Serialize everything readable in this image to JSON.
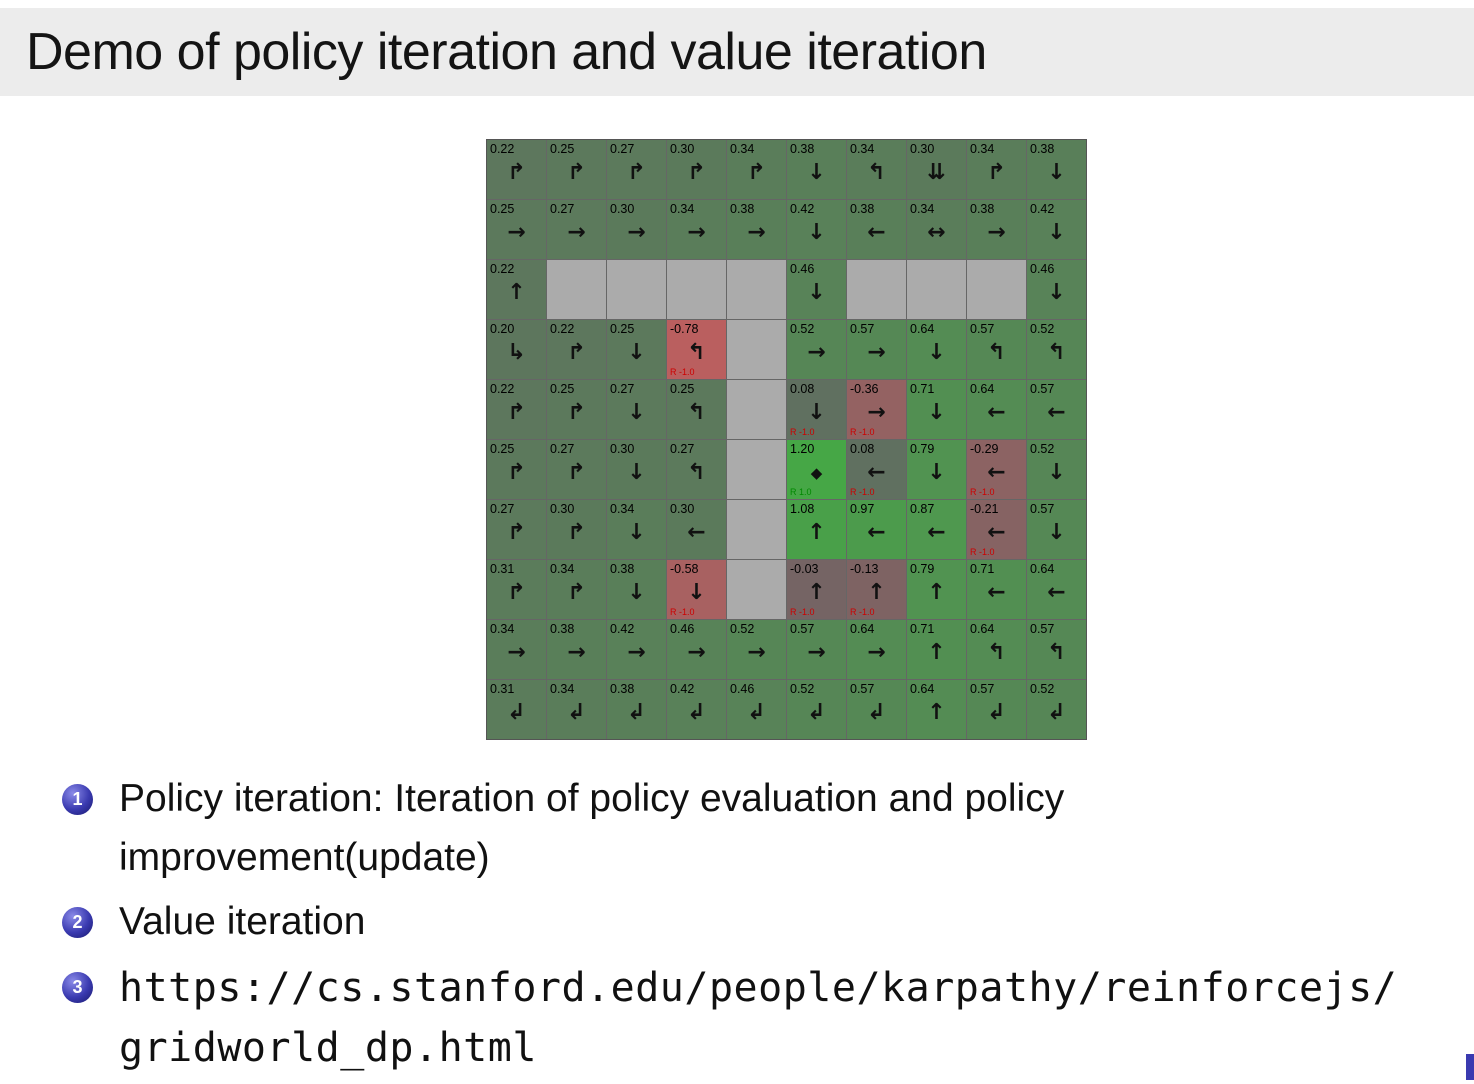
{
  "slide": {
    "title": "Demo of policy iteration and value iteration",
    "bullets": [
      {
        "num": "1",
        "text": "Policy iteration: Iteration of policy evaluation and policy improvement(update)"
      },
      {
        "num": "2",
        "text": "Value iteration"
      },
      {
        "num": "3",
        "lines": [
          "https://cs.stanford.edu/people/karpathy/reinforcejs/",
          "gridworld_dp.html"
        ]
      }
    ],
    "accent_blue": "#3a3ab0",
    "header_bg": "#ececec"
  },
  "grid": {
    "rows": 10,
    "cols": 10,
    "positive_color": "#3cbe3c",
    "negative_color": "#ff5a5a",
    "wall_color": "#ababab",
    "reward_negative_color": "#cc0000",
    "reward_positive_color": "#008800",
    "arrow_glyphs": {
      "U": "↑",
      "D": "↓",
      "L": "←",
      "R": "→",
      "LR": "↔",
      "DD": "⇊",
      "UR": "↱",
      "UL": "↰",
      "DL": "↲",
      "DR": "↳",
      "STAR": "◆"
    },
    "cells": [
      [
        {
          "v": "0.22",
          "a": "UR"
        },
        {
          "v": "0.25",
          "a": "UR"
        },
        {
          "v": "0.27",
          "a": "UR"
        },
        {
          "v": "0.30",
          "a": "UR"
        },
        {
          "v": "0.34",
          "a": "UR"
        },
        {
          "v": "0.38",
          "a": "D"
        },
        {
          "v": "0.34",
          "a": "UL"
        },
        {
          "v": "0.30",
          "a": "DD"
        },
        {
          "v": "0.34",
          "a": "UR"
        },
        {
          "v": "0.38",
          "a": "D"
        }
      ],
      [
        {
          "v": "0.25",
          "a": "R"
        },
        {
          "v": "0.27",
          "a": "R"
        },
        {
          "v": "0.30",
          "a": "R"
        },
        {
          "v": "0.34",
          "a": "R"
        },
        {
          "v": "0.38",
          "a": "R"
        },
        {
          "v": "0.42",
          "a": "D"
        },
        {
          "v": "0.38",
          "a": "L"
        },
        {
          "v": "0.34",
          "a": "LR"
        },
        {
          "v": "0.38",
          "a": "R"
        },
        {
          "v": "0.42",
          "a": "D"
        }
      ],
      [
        {
          "v": "0.22",
          "a": "U"
        },
        {
          "wall": true
        },
        {
          "wall": true
        },
        {
          "wall": true
        },
        {
          "wall": true
        },
        {
          "v": "0.46",
          "a": "D"
        },
        {
          "wall": true
        },
        {
          "wall": true
        },
        {
          "wall": true
        },
        {
          "v": "0.46",
          "a": "D"
        }
      ],
      [
        {
          "v": "0.20",
          "a": "DR"
        },
        {
          "v": "0.22",
          "a": "UR"
        },
        {
          "v": "0.25",
          "a": "D"
        },
        {
          "v": "-0.78",
          "a": "UL",
          "r": "R -1.0"
        },
        {
          "wall": true
        },
        {
          "v": "0.52",
          "a": "R"
        },
        {
          "v": "0.57",
          "a": "R"
        },
        {
          "v": "0.64",
          "a": "D"
        },
        {
          "v": "0.57",
          "a": "UL"
        },
        {
          "v": "0.52",
          "a": "UL"
        }
      ],
      [
        {
          "v": "0.22",
          "a": "UR"
        },
        {
          "v": "0.25",
          "a": "UR"
        },
        {
          "v": "0.27",
          "a": "D"
        },
        {
          "v": "0.25",
          "a": "UL"
        },
        {
          "wall": true
        },
        {
          "v": "0.08",
          "a": "D",
          "r": "R -1.0"
        },
        {
          "v": "-0.36",
          "a": "R",
          "r": "R -1.0"
        },
        {
          "v": "0.71",
          "a": "D"
        },
        {
          "v": "0.64",
          "a": "L"
        },
        {
          "v": "0.57",
          "a": "L"
        }
      ],
      [
        {
          "v": "0.25",
          "a": "UR"
        },
        {
          "v": "0.27",
          "a": "UR"
        },
        {
          "v": "0.30",
          "a": "D"
        },
        {
          "v": "0.27",
          "a": "UL"
        },
        {
          "wall": true
        },
        {
          "v": "1.20",
          "a": "STAR",
          "r": "R 1.0"
        },
        {
          "v": "0.08",
          "a": "L",
          "r": "R -1.0"
        },
        {
          "v": "0.79",
          "a": "D"
        },
        {
          "v": "-0.29",
          "a": "L",
          "r": "R -1.0"
        },
        {
          "v": "0.52",
          "a": "D"
        }
      ],
      [
        {
          "v": "0.27",
          "a": "UR"
        },
        {
          "v": "0.30",
          "a": "UR"
        },
        {
          "v": "0.34",
          "a": "D"
        },
        {
          "v": "0.30",
          "a": "L"
        },
        {
          "wall": true
        },
        {
          "v": "1.08",
          "a": "U"
        },
        {
          "v": "0.97",
          "a": "L"
        },
        {
          "v": "0.87",
          "a": "L"
        },
        {
          "v": "-0.21",
          "a": "L",
          "r": "R -1.0"
        },
        {
          "v": "0.57",
          "a": "D"
        }
      ],
      [
        {
          "v": "0.31",
          "a": "UR"
        },
        {
          "v": "0.34",
          "a": "UR"
        },
        {
          "v": "0.38",
          "a": "D"
        },
        {
          "v": "-0.58",
          "a": "D",
          "r": "R -1.0"
        },
        {
          "wall": true
        },
        {
          "v": "-0.03",
          "a": "U",
          "r": "R -1.0"
        },
        {
          "v": "-0.13",
          "a": "U",
          "r": "R -1.0"
        },
        {
          "v": "0.79",
          "a": "U"
        },
        {
          "v": "0.71",
          "a": "L"
        },
        {
          "v": "0.64",
          "a": "L"
        }
      ],
      [
        {
          "v": "0.34",
          "a": "R"
        },
        {
          "v": "0.38",
          "a": "R"
        },
        {
          "v": "0.42",
          "a": "R"
        },
        {
          "v": "0.46",
          "a": "R"
        },
        {
          "v": "0.52",
          "a": "R"
        },
        {
          "v": "0.57",
          "a": "R"
        },
        {
          "v": "0.64",
          "a": "R"
        },
        {
          "v": "0.71",
          "a": "U"
        },
        {
          "v": "0.64",
          "a": "UL"
        },
        {
          "v": "0.57",
          "a": "UL"
        }
      ],
      [
        {
          "v": "0.31",
          "a": "DL"
        },
        {
          "v": "0.34",
          "a": "DL"
        },
        {
          "v": "0.38",
          "a": "DL"
        },
        {
          "v": "0.42",
          "a": "DL"
        },
        {
          "v": "0.46",
          "a": "DL"
        },
        {
          "v": "0.52",
          "a": "DL"
        },
        {
          "v": "0.57",
          "a": "DL"
        },
        {
          "v": "0.64",
          "a": "U"
        },
        {
          "v": "0.57",
          "a": "DL"
        },
        {
          "v": "0.52",
          "a": "DL"
        }
      ]
    ]
  }
}
